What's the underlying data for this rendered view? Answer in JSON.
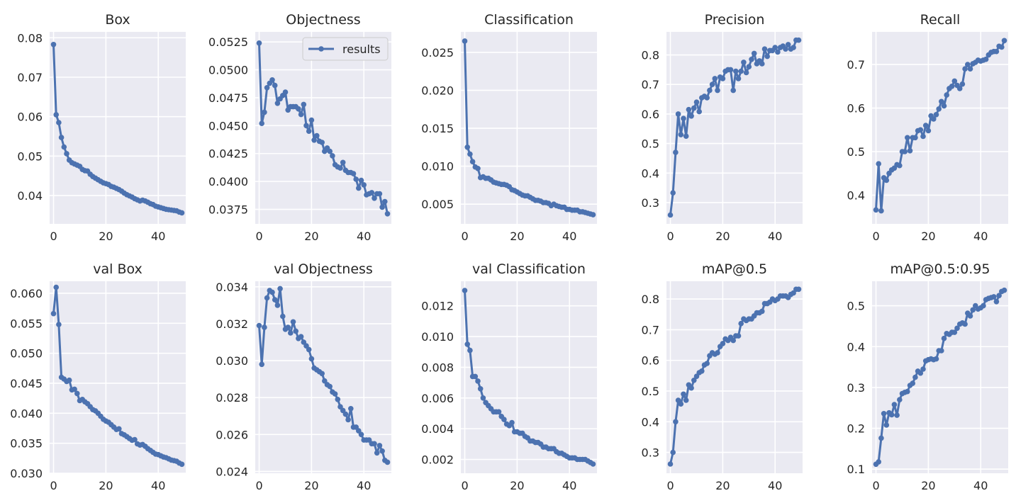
{
  "colors": {
    "line": "#4c72b0",
    "panel": "#eaeaf2",
    "grid": "#ffffff",
    "text": "#262626"
  },
  "legend_label": "results",
  "chart_data": [
    {
      "type": "line",
      "title": "Box",
      "xlim": [
        -1.5,
        50.5
      ],
      "ylim": [
        0.0328,
        0.0815
      ],
      "xticks": [
        0,
        20,
        40
      ],
      "xtick_labels": [
        "0",
        "20",
        "40"
      ],
      "yticks": [
        0.04,
        0.05,
        0.06,
        0.07,
        0.08
      ],
      "ytick_labels": [
        "0.04",
        "0.05",
        "0.06",
        "0.07",
        "0.08"
      ],
      "series": [
        {
          "name": "results",
          "values": [
            0.0783,
            0.0605,
            0.0585,
            0.0547,
            0.0523,
            0.0506,
            0.049,
            0.0483,
            0.048,
            0.0477,
            0.0474,
            0.0466,
            0.0463,
            0.0462,
            0.0454,
            0.0448,
            0.0444,
            0.044,
            0.0436,
            0.0432,
            0.043,
            0.0428,
            0.0423,
            0.0421,
            0.0418,
            0.0415,
            0.0411,
            0.0406,
            0.0402,
            0.0399,
            0.0396,
            0.0392,
            0.0389,
            0.0386,
            0.0388,
            0.0386,
            0.0383,
            0.0379,
            0.0377,
            0.0373,
            0.0371,
            0.0369,
            0.0367,
            0.0365,
            0.0364,
            0.0363,
            0.0362,
            0.0361,
            0.0358,
            0.0356
          ]
        }
      ]
    },
    {
      "type": "line",
      "title": "Objectness",
      "xlim": [
        -1.5,
        50.5
      ],
      "ylim": [
        0.0362,
        0.0534
      ],
      "xticks": [
        0,
        20,
        40
      ],
      "xtick_labels": [
        "0",
        "20",
        "40"
      ],
      "yticks": [
        0.0375,
        0.04,
        0.0425,
        0.045,
        0.0475,
        0.05,
        0.0525
      ],
      "ytick_labels": [
        "0.0375",
        "0.0400",
        "0.0425",
        "0.0450",
        "0.0475",
        "0.0500",
        "0.0525"
      ],
      "legend": true,
      "series": [
        {
          "name": "results",
          "values": [
            0.0524,
            0.0452,
            0.0462,
            0.0484,
            0.0488,
            0.0491,
            0.0486,
            0.047,
            0.0474,
            0.0477,
            0.048,
            0.0464,
            0.0467,
            0.0467,
            0.0467,
            0.0465,
            0.046,
            0.0469,
            0.045,
            0.0445,
            0.0455,
            0.0437,
            0.0441,
            0.0436,
            0.0435,
            0.0427,
            0.043,
            0.0427,
            0.0423,
            0.0415,
            0.0413,
            0.0412,
            0.0417,
            0.041,
            0.0408,
            0.0408,
            0.0407,
            0.0402,
            0.0394,
            0.0401,
            0.0397,
            0.0388,
            0.0389,
            0.039,
            0.0385,
            0.0389,
            0.0389,
            0.0377,
            0.0382,
            0.0371
          ]
        }
      ]
    },
    {
      "type": "line",
      "title": "Classification",
      "xlim": [
        -1.5,
        50.5
      ],
      "ylim": [
        0.0024,
        0.0277
      ],
      "xticks": [
        0,
        20,
        40
      ],
      "xtick_labels": [
        "0",
        "20",
        "40"
      ],
      "yticks": [
        0.005,
        0.01,
        0.015,
        0.02,
        0.025
      ],
      "ytick_labels": [
        "0.005",
        "0.010",
        "0.015",
        "0.020",
        "0.025"
      ],
      "series": [
        {
          "name": "results",
          "values": [
            0.0265,
            0.0125,
            0.0116,
            0.0106,
            0.0099,
            0.0097,
            0.0085,
            0.0086,
            0.0084,
            0.0084,
            0.0082,
            0.0079,
            0.0078,
            0.0077,
            0.0076,
            0.0076,
            0.0075,
            0.0073,
            0.0069,
            0.0068,
            0.0066,
            0.0064,
            0.0062,
            0.0061,
            0.0061,
            0.0059,
            0.0057,
            0.0055,
            0.0055,
            0.0054,
            0.0052,
            0.0052,
            0.0051,
            0.0048,
            0.005,
            0.0048,
            0.0047,
            0.0046,
            0.0046,
            0.0043,
            0.0043,
            0.0042,
            0.0042,
            0.0042,
            0.004,
            0.004,
            0.0039,
            0.0038,
            0.0037,
            0.0036
          ]
        }
      ]
    },
    {
      "type": "line",
      "title": "Precision",
      "xlim": [
        -1.5,
        50.5
      ],
      "ylim": [
        0.228,
        0.878
      ],
      "xticks": [
        0,
        20,
        40
      ],
      "xtick_labels": [
        "0",
        "20",
        "40"
      ],
      "yticks": [
        0.3,
        0.4,
        0.5,
        0.6,
        0.7,
        0.8
      ],
      "ytick_labels": [
        "0.3",
        "0.4",
        "0.5",
        "0.6",
        "0.7",
        "0.8"
      ],
      "series": [
        {
          "name": "results",
          "values": [
            0.258,
            0.333,
            0.47,
            0.6,
            0.53,
            0.585,
            0.525,
            0.615,
            0.593,
            0.62,
            0.64,
            0.608,
            0.655,
            0.66,
            0.655,
            0.68,
            0.7,
            0.72,
            0.68,
            0.725,
            0.72,
            0.745,
            0.75,
            0.75,
            0.68,
            0.745,
            0.72,
            0.745,
            0.775,
            0.74,
            0.76,
            0.785,
            0.805,
            0.77,
            0.78,
            0.77,
            0.82,
            0.795,
            0.815,
            0.815,
            0.825,
            0.81,
            0.825,
            0.83,
            0.82,
            0.835,
            0.82,
            0.825,
            0.85,
            0.85
          ]
        }
      ]
    },
    {
      "type": "line",
      "title": "Recall",
      "xlim": [
        -1.5,
        50.5
      ],
      "ylim": [
        0.334,
        0.775
      ],
      "xticks": [
        0,
        20,
        40
      ],
      "xtick_labels": [
        "0",
        "20",
        "40"
      ],
      "yticks": [
        0.4,
        0.5,
        0.6,
        0.7
      ],
      "ytick_labels": [
        "0.4",
        "0.5",
        "0.6",
        "0.7"
      ],
      "series": [
        {
          "name": "results",
          "values": [
            0.366,
            0.472,
            0.364,
            0.44,
            0.434,
            0.45,
            0.458,
            0.462,
            0.47,
            0.468,
            0.5,
            0.5,
            0.532,
            0.502,
            0.532,
            0.532,
            0.548,
            0.55,
            0.535,
            0.56,
            0.548,
            0.582,
            0.575,
            0.585,
            0.598,
            0.615,
            0.605,
            0.63,
            0.645,
            0.65,
            0.662,
            0.652,
            0.645,
            0.655,
            0.69,
            0.7,
            0.69,
            0.702,
            0.705,
            0.71,
            0.708,
            0.71,
            0.712,
            0.722,
            0.728,
            0.73,
            0.73,
            0.742,
            0.74,
            0.755
          ]
        }
      ]
    },
    {
      "type": "line",
      "title": "val Box",
      "xlim": [
        -1.5,
        50.5
      ],
      "ylim": [
        0.03,
        0.062
      ],
      "xticks": [
        0,
        20,
        40
      ],
      "xtick_labels": [
        "0",
        "20",
        "40"
      ],
      "yticks": [
        0.03,
        0.035,
        0.04,
        0.045,
        0.05,
        0.055,
        0.06
      ],
      "ytick_labels": [
        "0.030",
        "0.035",
        "0.040",
        "0.045",
        "0.050",
        "0.055",
        "0.060"
      ],
      "series": [
        {
          "name": "results",
          "values": [
            0.0566,
            0.061,
            0.0548,
            0.046,
            0.0457,
            0.0453,
            0.0455,
            0.0439,
            0.044,
            0.0433,
            0.0421,
            0.0423,
            0.0419,
            0.0416,
            0.0411,
            0.0406,
            0.0404,
            0.04,
            0.0395,
            0.039,
            0.0387,
            0.0385,
            0.0381,
            0.0377,
            0.0373,
            0.0374,
            0.0366,
            0.0364,
            0.0361,
            0.0358,
            0.0355,
            0.0356,
            0.0349,
            0.0347,
            0.0348,
            0.0345,
            0.0341,
            0.0338,
            0.0335,
            0.0332,
            0.0331,
            0.0329,
            0.0327,
            0.0326,
            0.0324,
            0.0322,
            0.0321,
            0.032,
            0.0317,
            0.0315
          ]
        }
      ]
    },
    {
      "type": "line",
      "title": "val Objectness",
      "xlim": [
        -1.5,
        50.5
      ],
      "ylim": [
        0.0239,
        0.0343
      ],
      "xticks": [
        0,
        20,
        40
      ],
      "xtick_labels": [
        "0",
        "20",
        "40"
      ],
      "yticks": [
        0.024,
        0.026,
        0.028,
        0.03,
        0.032,
        0.034
      ],
      "ytick_labels": [
        "0.024",
        "0.026",
        "0.028",
        "0.030",
        "0.032",
        "0.034"
      ],
      "series": [
        {
          "name": "results",
          "values": [
            0.0319,
            0.0298,
            0.0318,
            0.0334,
            0.0338,
            0.0337,
            0.0333,
            0.033,
            0.0339,
            0.0324,
            0.0317,
            0.0318,
            0.0315,
            0.0321,
            0.0316,
            0.0312,
            0.0313,
            0.031,
            0.0308,
            0.0306,
            0.0301,
            0.0296,
            0.0295,
            0.0294,
            0.0293,
            0.0289,
            0.0287,
            0.0286,
            0.0283,
            0.0282,
            0.0279,
            0.0275,
            0.0273,
            0.0271,
            0.0268,
            0.0274,
            0.0264,
            0.0264,
            0.0262,
            0.026,
            0.0257,
            0.0257,
            0.0257,
            0.0255,
            0.0255,
            0.025,
            0.0254,
            0.0251,
            0.0246,
            0.0245
          ]
        }
      ]
    },
    {
      "type": "line",
      "title": "val Classification",
      "xlim": [
        -1.5,
        50.5
      ],
      "ylim": [
        0.0011,
        0.0136
      ],
      "xticks": [
        0,
        20,
        40
      ],
      "xtick_labels": [
        "0",
        "20",
        "40"
      ],
      "yticks": [
        0.002,
        0.004,
        0.006,
        0.008,
        0.01,
        0.012
      ],
      "ytick_labels": [
        "0.002",
        "0.004",
        "0.006",
        "0.008",
        "0.010",
        "0.012"
      ],
      "series": [
        {
          "name": "results",
          "values": [
            0.013,
            0.0095,
            0.0091,
            0.0074,
            0.0074,
            0.0071,
            0.0066,
            0.006,
            0.0057,
            0.0055,
            0.0053,
            0.0051,
            0.0051,
            0.0051,
            0.0048,
            0.0046,
            0.0043,
            0.0042,
            0.0044,
            0.0038,
            0.0038,
            0.0037,
            0.0037,
            0.0035,
            0.0034,
            0.0032,
            0.0032,
            0.0031,
            0.0031,
            0.003,
            0.0028,
            0.0028,
            0.0027,
            0.0027,
            0.0027,
            0.0025,
            0.0024,
            0.0024,
            0.0023,
            0.0022,
            0.0021,
            0.0021,
            0.0021,
            0.002,
            0.002,
            0.002,
            0.002,
            0.0019,
            0.0018,
            0.0017
          ]
        }
      ]
    },
    {
      "type": "line",
      "title": "mAP@0.5",
      "xlim": [
        -1.5,
        50.5
      ],
      "ylim": [
        0.232,
        0.858
      ],
      "xticks": [
        0,
        20,
        40
      ],
      "xtick_labels": [
        "0",
        "20",
        "40"
      ],
      "yticks": [
        0.3,
        0.4,
        0.5,
        0.6,
        0.7,
        0.8
      ],
      "ytick_labels": [
        "0.3",
        "0.4",
        "0.5",
        "0.6",
        "0.7",
        "0.8"
      ],
      "series": [
        {
          "name": "results",
          "values": [
            0.262,
            0.3,
            0.4,
            0.47,
            0.458,
            0.49,
            0.47,
            0.52,
            0.51,
            0.535,
            0.548,
            0.56,
            0.565,
            0.585,
            0.59,
            0.615,
            0.625,
            0.62,
            0.625,
            0.645,
            0.655,
            0.67,
            0.665,
            0.675,
            0.665,
            0.68,
            0.68,
            0.72,
            0.735,
            0.73,
            0.735,
            0.735,
            0.745,
            0.755,
            0.755,
            0.76,
            0.785,
            0.785,
            0.79,
            0.8,
            0.795,
            0.8,
            0.81,
            0.81,
            0.81,
            0.805,
            0.815,
            0.82,
            0.832,
            0.832
          ]
        }
      ]
    },
    {
      "type": "line",
      "title": "mAP@0.5:0.95",
      "xlim": [
        -1.5,
        50.5
      ],
      "ylim": [
        0.09,
        0.56
      ],
      "xticks": [
        0,
        20,
        40
      ],
      "xtick_labels": [
        "0",
        "20",
        "40"
      ],
      "yticks": [
        0.1,
        0.2,
        0.3,
        0.4,
        0.5
      ],
      "ytick_labels": [
        "0.1",
        "0.2",
        "0.3",
        "0.4",
        "0.5"
      ],
      "series": [
        {
          "name": "results",
          "values": [
            0.112,
            0.118,
            0.176,
            0.236,
            0.208,
            0.238,
            0.233,
            0.258,
            0.232,
            0.27,
            0.285,
            0.288,
            0.29,
            0.305,
            0.31,
            0.325,
            0.34,
            0.335,
            0.345,
            0.365,
            0.368,
            0.37,
            0.368,
            0.37,
            0.39,
            0.39,
            0.42,
            0.432,
            0.43,
            0.435,
            0.435,
            0.445,
            0.455,
            0.458,
            0.455,
            0.482,
            0.475,
            0.49,
            0.5,
            0.492,
            0.495,
            0.5,
            0.515,
            0.518,
            0.52,
            0.522,
            0.51,
            0.525,
            0.535,
            0.538
          ]
        }
      ]
    }
  ]
}
